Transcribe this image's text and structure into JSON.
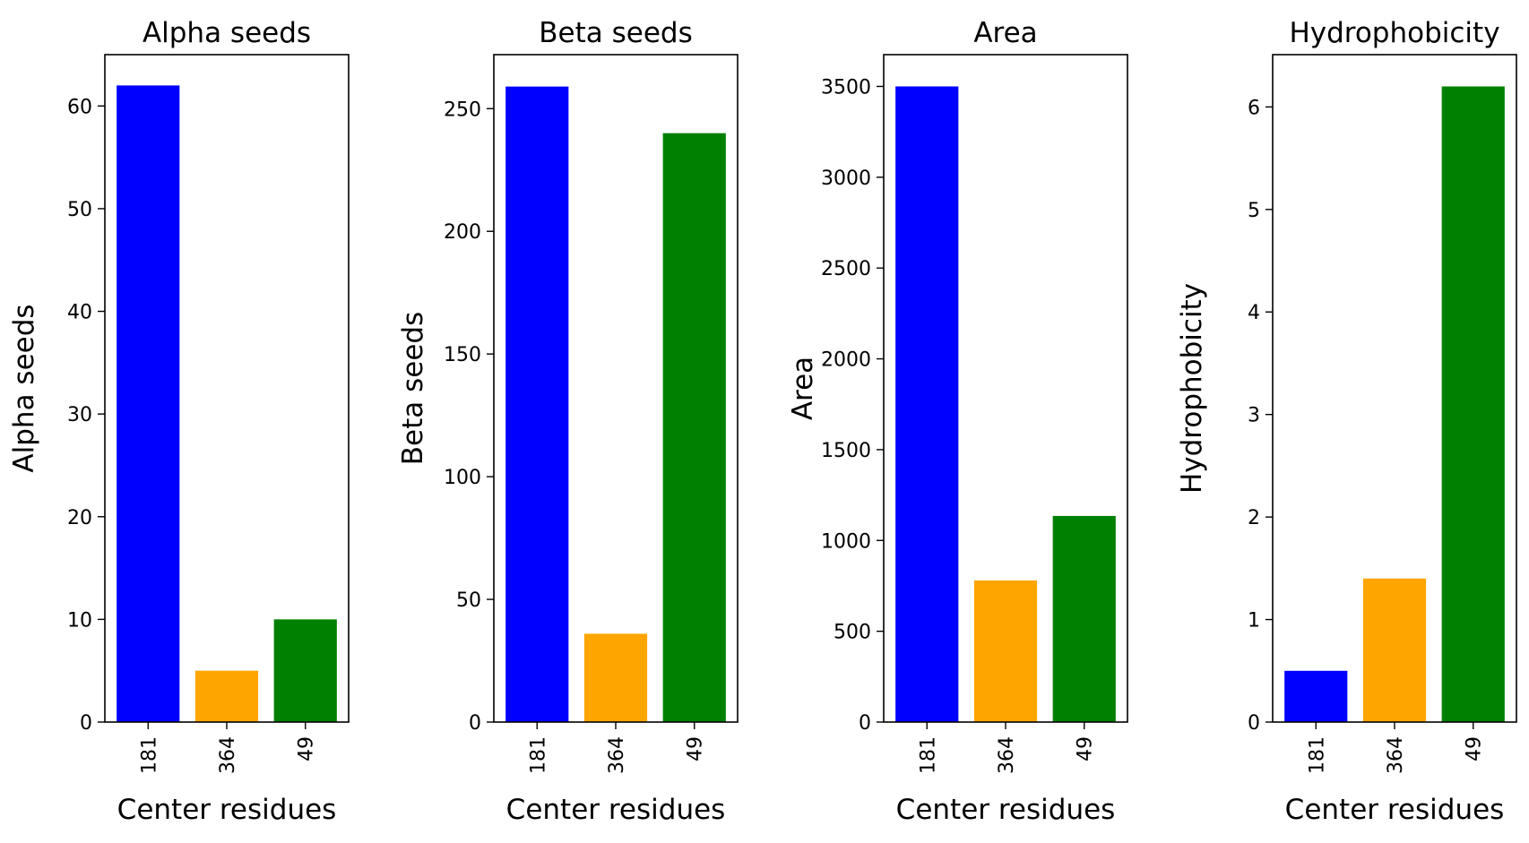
{
  "chart_data": [
    {
      "type": "bar",
      "title": "Alpha seeds",
      "xlabel": "Center residues",
      "ylabel": "Alpha seeds",
      "categories": [
        "181",
        "364",
        "49"
      ],
      "values": [
        62,
        5,
        10
      ],
      "colors": [
        "#0000ff",
        "#ffa500",
        "#008000"
      ],
      "ylim": [
        0,
        65
      ],
      "yticks": [
        0,
        10,
        20,
        30,
        40,
        50,
        60
      ],
      "grid": false
    },
    {
      "type": "bar",
      "title": "Beta seeds",
      "xlabel": "Center residues",
      "ylabel": "Beta seeds",
      "categories": [
        "181",
        "364",
        "49"
      ],
      "values": [
        259,
        36,
        240
      ],
      "colors": [
        "#0000ff",
        "#ffa500",
        "#008000"
      ],
      "ylim": [
        0,
        272
      ],
      "yticks": [
        0,
        50,
        100,
        150,
        200,
        250
      ],
      "grid": false
    },
    {
      "type": "bar",
      "title": "Area",
      "xlabel": "Center residues",
      "ylabel": "Area",
      "categories": [
        "181",
        "364",
        "49"
      ],
      "values": [
        3500,
        780,
        1135
      ],
      "colors": [
        "#0000ff",
        "#ffa500",
        "#008000"
      ],
      "ylim": [
        0,
        3675
      ],
      "yticks": [
        0,
        500,
        1000,
        1500,
        2000,
        2500,
        3000,
        3500
      ],
      "grid": false
    },
    {
      "type": "bar",
      "title": "Hydrophobicity",
      "xlabel": "Center residues",
      "ylabel": "Hydrophobicity",
      "categories": [
        "181",
        "364",
        "49"
      ],
      "values": [
        0.5,
        1.4,
        6.2
      ],
      "colors": [
        "#0000ff",
        "#ffa500",
        "#008000"
      ],
      "ylim": [
        0,
        6.51
      ],
      "yticks": [
        0,
        1,
        2,
        3,
        4,
        5,
        6
      ],
      "grid": false
    }
  ]
}
